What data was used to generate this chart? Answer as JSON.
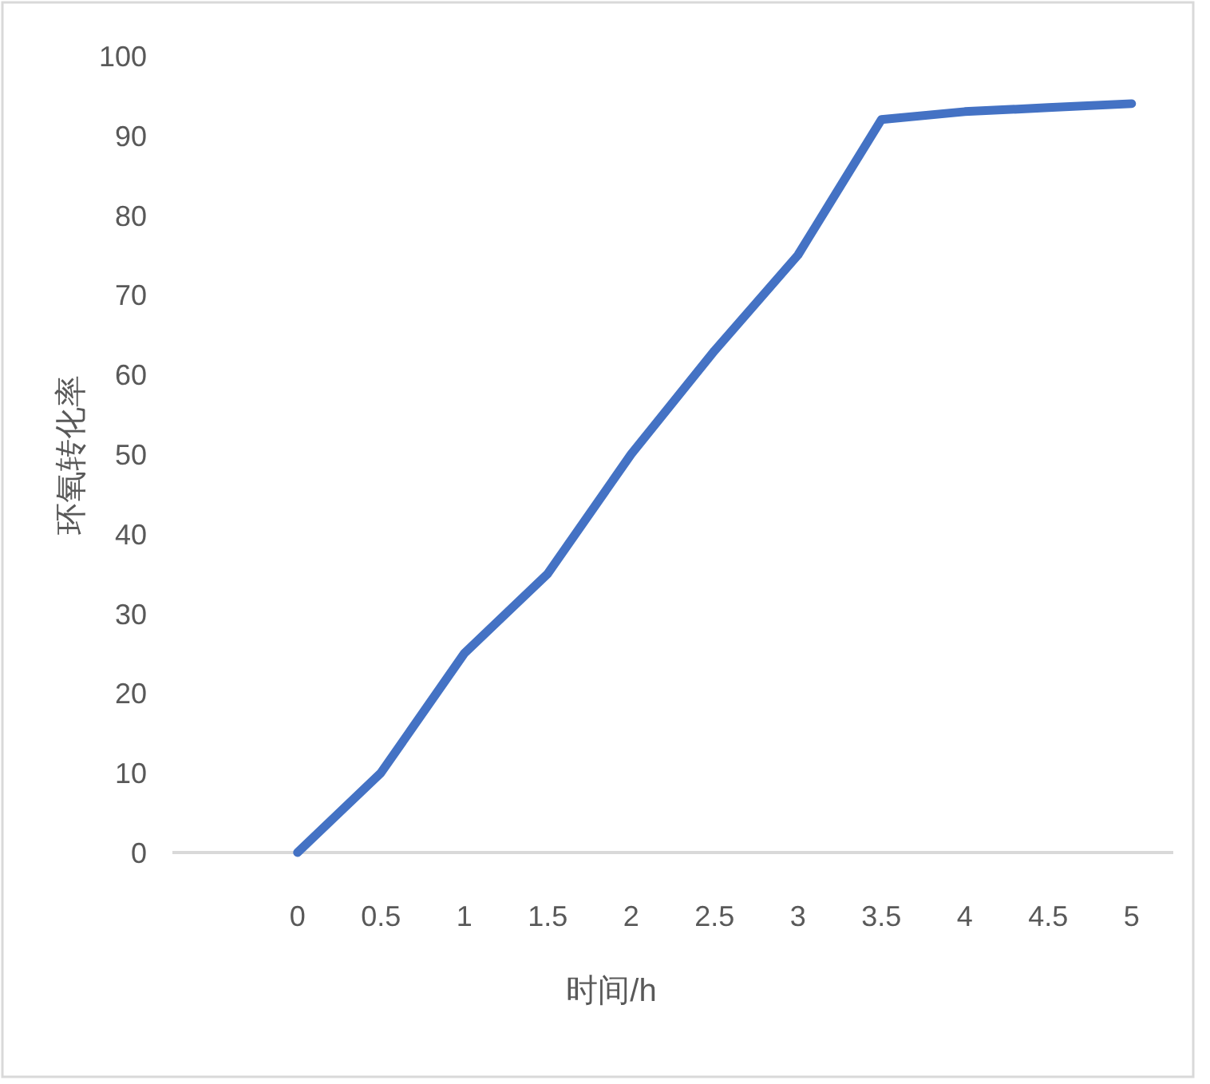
{
  "chart_data": {
    "type": "line",
    "xlabel": "时间/h",
    "ylabel": "环氧转化率",
    "categories": [
      null,
      "0",
      "0.5",
      "1",
      "1.5",
      "2",
      "2.5",
      "3",
      "3.5",
      "4",
      "4.5",
      "5"
    ],
    "series": [
      {
        "color": "#4472c4",
        "values": [
          null,
          0,
          10,
          25,
          35,
          50,
          63,
          75,
          92,
          93,
          93.5,
          94
        ]
      }
    ],
    "ylim": [
      0,
      100
    ],
    "yticks": [
      0,
      10,
      20,
      30,
      40,
      50,
      60,
      70,
      80,
      90,
      100
    ],
    "line_style": "solid"
  }
}
